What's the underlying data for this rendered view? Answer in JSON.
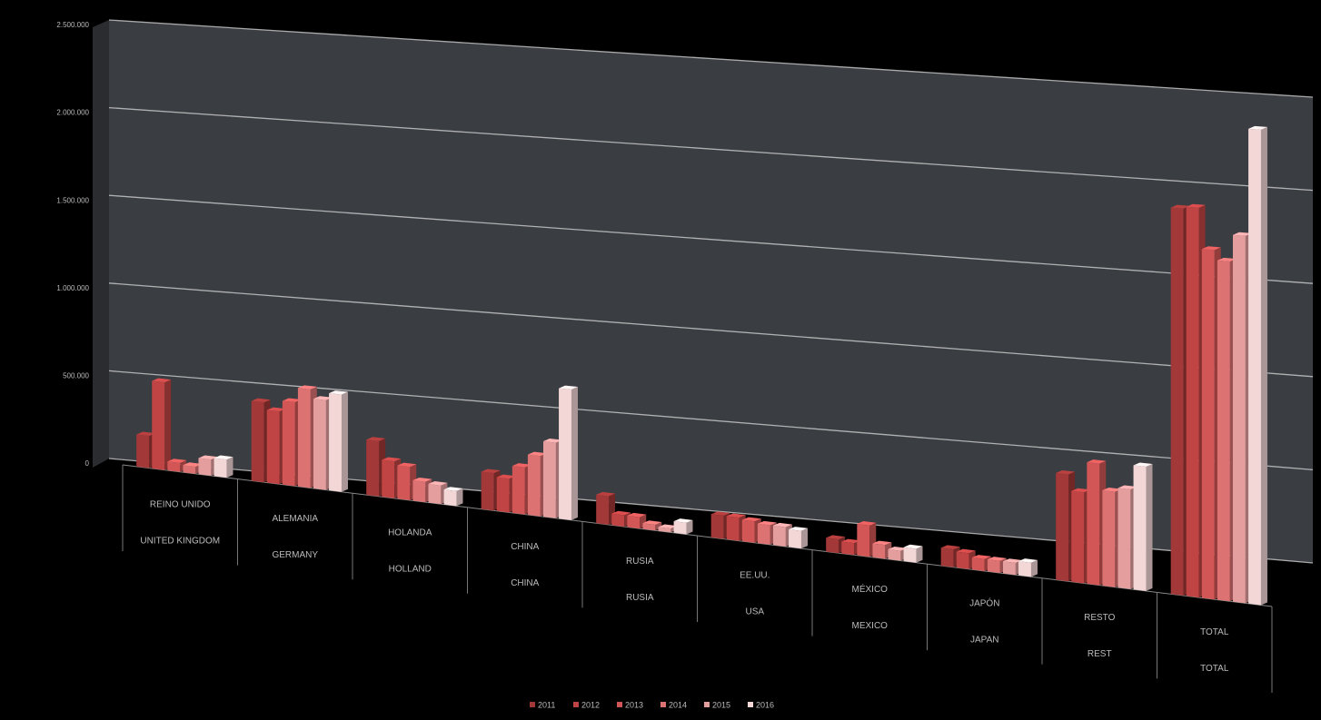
{
  "chart_data": {
    "type": "bar3d",
    "categories": [
      [
        "REINO UNIDO",
        "UNITED KINGDOM"
      ],
      [
        "ALEMANIA",
        "GERMANY"
      ],
      [
        "HOLANDA",
        "HOLLAND"
      ],
      [
        "CHINA",
        "CHINA"
      ],
      [
        "RUSIA",
        "RUSIA"
      ],
      [
        "EE.UU.",
        "USA"
      ],
      [
        "MÉXICO",
        "MEXICO"
      ],
      [
        "JAPÓN",
        "JAPAN"
      ],
      [
        "RESTO",
        "REST"
      ],
      [
        "TOTAL",
        "TOTAL"
      ]
    ],
    "series": [
      {
        "name": "2011",
        "color": "#a33838",
        "values": [
          180000,
          440000,
          300000,
          200000,
          150000,
          120000,
          70000,
          90000,
          530000,
          1890000
        ]
      },
      {
        "name": "2012",
        "color": "#c04444",
        "values": [
          490000,
          400000,
          200000,
          180000,
          60000,
          120000,
          60000,
          80000,
          450000,
          1900000
        ]
      },
      {
        "name": "2013",
        "color": "#d25656",
        "values": [
          50000,
          460000,
          180000,
          250000,
          60000,
          110000,
          160000,
          60000,
          600000,
          1700000
        ]
      },
      {
        "name": "2014",
        "color": "#dc7272",
        "values": [
          40000,
          540000,
          110000,
          320000,
          30000,
          100000,
          70000,
          60000,
          470000,
          1650000
        ]
      },
      {
        "name": "2015",
        "color": "#e59e9e",
        "values": [
          90000,
          490000,
          100000,
          400000,
          20000,
          100000,
          50000,
          60000,
          490000,
          1780000
        ]
      },
      {
        "name": "2016",
        "color": "#f3d6d6",
        "values": [
          100000,
          530000,
          80000,
          690000,
          60000,
          90000,
          70000,
          70000,
          610000,
          2300000
        ]
      }
    ],
    "ylim": [
      0,
      2500000
    ],
    "yticks": [
      0,
      {
        "value": 500000,
        "label": "500.000"
      },
      {
        "value": 1000000,
        "label": "1.000.000"
      },
      {
        "value": 1500000,
        "label": "1.500.000"
      },
      {
        "value": 2000000,
        "label": "2.000.000"
      },
      {
        "value": 2500000,
        "label": "2.500.000"
      }
    ],
    "grid": true
  }
}
